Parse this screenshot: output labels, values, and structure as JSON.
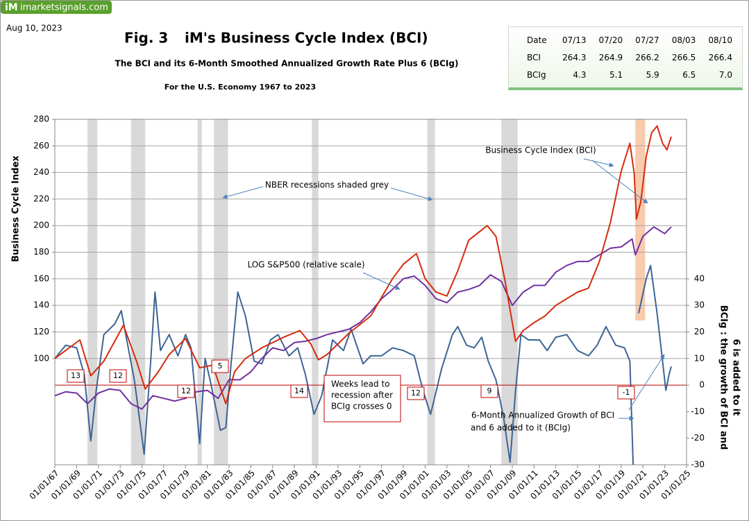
{
  "header": {
    "logo_mark": "iM",
    "logo_text": "imarketsignals.com",
    "date": "Aug 10, 2023"
  },
  "table": {
    "rows": [
      [
        "Date",
        "07/13",
        "07/20",
        "07/27",
        "08/03",
        "08/10"
      ],
      [
        "BCI",
        "264.3",
        "264.9",
        "266.2",
        "266.5",
        "266.4"
      ],
      [
        "BCIg",
        "4.3",
        "5.1",
        "5.9",
        "6.5",
        "7.0"
      ]
    ]
  },
  "chart_data": {
    "type": "line",
    "fig_label": "Fig. 3",
    "title": "iM's Business Cycle Index (BCI)",
    "subtitle": "The BCI and its 6-Month Smoothed Annualized Growth Rate Plus 6 (BCIg)",
    "note": "For the U.S. Economy 1967  to 2023",
    "ylabel": "Business  Cycle  Index",
    "y2label": [
      "BCIg :  the growth of BCI and",
      "6 is added to it"
    ],
    "xlim": [
      1967,
      2025
    ],
    "xticks": [
      {
        "value": 1967,
        "label": "01/01/67"
      },
      {
        "value": 1969,
        "label": "01/01/69"
      },
      {
        "value": 1971,
        "label": "01/01/71"
      },
      {
        "value": 1973,
        "label": "01/01/73"
      },
      {
        "value": 1975,
        "label": "01/01/75"
      },
      {
        "value": 1977,
        "label": "01/01/77"
      },
      {
        "value": 1979,
        "label": "01/01/79"
      },
      {
        "value": 1981,
        "label": "01/01/81"
      },
      {
        "value": 1983,
        "label": "01/01/83"
      },
      {
        "value": 1985,
        "label": "01/01/85"
      },
      {
        "value": 1987,
        "label": "01/01/87"
      },
      {
        "value": 1989,
        "label": "01/01/89"
      },
      {
        "value": 1991,
        "label": "01/01/91"
      },
      {
        "value": 1993,
        "label": "01/01/93"
      },
      {
        "value": 1995,
        "label": "01/01/95"
      },
      {
        "value": 1997,
        "label": "01/01/97"
      },
      {
        "value": 1999,
        "label": "01/01/99"
      },
      {
        "value": 2001,
        "label": "01/01/01"
      },
      {
        "value": 2003,
        "label": "01/01/03"
      },
      {
        "value": 2005,
        "label": "01/01/05"
      },
      {
        "value": 2007,
        "label": "01/01/07"
      },
      {
        "value": 2009,
        "label": "01/01/09"
      },
      {
        "value": 2011,
        "label": "01/01/11"
      },
      {
        "value": 2013,
        "label": "01/01/13"
      },
      {
        "value": 2015,
        "label": "01/01/15"
      },
      {
        "value": 2017,
        "label": "01/01/17"
      },
      {
        "value": 2019,
        "label": "01/01/19"
      },
      {
        "value": 2021,
        "label": "01/01/21"
      },
      {
        "value": 2023,
        "label": "01/01/23"
      },
      {
        "value": 2025,
        "label": "01/01/25"
      }
    ],
    "ylim": [
      20,
      280
    ],
    "yticks": [
      100,
      120,
      140,
      160,
      180,
      200,
      220,
      240,
      260,
      280
    ],
    "y2lim": [
      -30,
      100
    ],
    "y2ticks": [
      -30,
      -20,
      -10,
      0,
      10,
      20,
      30,
      40
    ],
    "grid": true,
    "zero_line_color": "#c00000",
    "recessions": [
      [
        1970.0,
        1970.9
      ],
      [
        1974.0,
        1975.3
      ],
      [
        1980.1,
        1980.5
      ],
      [
        1981.6,
        1982.9
      ],
      [
        1990.6,
        1991.2
      ],
      [
        2001.2,
        2001.9
      ],
      [
        2008.0,
        2009.5
      ]
    ],
    "recession_color": "#d9d9d9",
    "highlight": [
      2020.3,
      2021.2
    ],
    "highlight_color": "#f8cbad",
    "series": [
      {
        "name": "Business Cycle Index (BCI)",
        "color": "#d62a0c",
        "axis": "y",
        "x": [
          1967,
          1969.3,
          1970.3,
          1971.5,
          1973.3,
          1974.5,
          1975.3,
          1976.5,
          1977.5,
          1979,
          1980.3,
          1981.5,
          1982.7,
          1983.5,
          1984.5,
          1986,
          1988,
          1989.5,
          1990.5,
          1991.2,
          1992,
          1994,
          1996,
          1998,
          1999,
          2000.2,
          2001,
          2002,
          2003,
          2004,
          2005,
          2006.7,
          2007.5,
          2008.3,
          2009.3,
          2010,
          2011,
          2012,
          2013,
          2014,
          2015,
          2016,
          2017,
          2018,
          2019,
          2019.8,
          2020.2,
          2020.4,
          2020.8,
          2021.3,
          2021.8,
          2022.3,
          2022.8,
          2023.2,
          2023.6
        ],
        "values": [
          100,
          114,
          87,
          98,
          125,
          98,
          77,
          90,
          103,
          115,
          93,
          95,
          66,
          90,
          100,
          108,
          116,
          121,
          111,
          99,
          103,
          119,
          132,
          160,
          171,
          179,
          160,
          150,
          147,
          166,
          189,
          200,
          192,
          160,
          113,
          121,
          127,
          132,
          140,
          145,
          150,
          153,
          173,
          202,
          241,
          262,
          239,
          205,
          218,
          252,
          270,
          275,
          262,
          257,
          267
        ]
      },
      {
        "name": "LOG S&P500 (relative scale)",
        "color": "#7030a0",
        "axis": "y",
        "x": [
          1967,
          1968,
          1969,
          1970,
          1971,
          1972,
          1973,
          1974,
          1975,
          1976,
          1977,
          1978,
          1979,
          1980,
          1981,
          1982,
          1983,
          1984,
          1985,
          1986,
          1987,
          1988,
          1989,
          1990,
          1991,
          1992,
          1993,
          1994,
          1995,
          1996,
          1997,
          1998,
          1999,
          2000,
          2001,
          2002,
          2003,
          2004,
          2005,
          2006,
          2007,
          2008,
          2009,
          2010,
          2011,
          2012,
          2013,
          2014,
          2015,
          2016,
          2017,
          2018,
          2019,
          2020,
          2020.3,
          2021,
          2022,
          2023,
          2023.6
        ],
        "values": [
          72,
          75,
          74,
          66,
          74,
          77,
          76,
          66,
          62,
          72,
          70,
          68,
          70,
          75,
          76,
          70,
          84,
          84,
          90,
          100,
          108,
          106,
          112,
          113,
          115,
          118,
          120,
          122,
          127,
          135,
          145,
          152,
          160,
          162,
          155,
          145,
          142,
          150,
          152,
          155,
          163,
          158,
          140,
          150,
          155,
          155,
          165,
          170,
          173,
          173,
          178,
          183,
          184,
          190,
          178,
          192,
          199,
          194,
          199
        ]
      },
      {
        "label_lines": [
          "6-Month Annualized Growth of BCI",
          "and 6 added to it (BCIg)"
        ],
        "color": "#3c6496",
        "axis": "y2",
        "x": [
          1967,
          1968,
          1969,
          1969.7,
          1970.3,
          1970.8,
          1971.5,
          1972.5,
          1973.1,
          1973.6,
          1974.3,
          1975.2,
          1975.8,
          1976.2,
          1976.7,
          1977.5,
          1978.3,
          1979,
          1979.5,
          1980.3,
          1980.8,
          1981.3,
          1982.2,
          1982.7,
          1983.2,
          1983.8,
          1984.5,
          1985.3,
          1986,
          1986.8,
          1987.5,
          1988.5,
          1989.3,
          1990,
          1990.8,
          1991.5,
          1992.5,
          1993.5,
          1994.2,
          1995.3,
          1996,
          1997,
          1998,
          1999,
          2000,
          2000.8,
          2001.5,
          2002.5,
          2003.5,
          2004,
          2004.8,
          2005.5,
          2006.2,
          2006.8,
          2007.5,
          2008.2,
          2008.8,
          2009.3,
          2009.8,
          2010.5,
          2011.5,
          2012.2,
          2013,
          2014,
          2015,
          2016,
          2016.8,
          2017.6,
          2018.5,
          2019.3,
          2019.8,
          2020.1,
          2020.3,
          2020.6,
          2021.3,
          2021.7,
          2022.3,
          2022.8,
          2023.1,
          2023.4,
          2023.6
        ],
        "values": [
          10,
          15,
          14,
          4,
          -21,
          -2,
          19,
          23,
          28,
          17,
          2,
          -26,
          9,
          35,
          13,
          19,
          11,
          19,
          14,
          -22,
          10,
          1,
          -17,
          -16,
          9,
          35,
          26,
          9,
          8,
          17,
          19,
          11,
          14,
          4,
          -11,
          -4,
          17,
          13,
          21,
          8,
          11,
          11,
          14,
          13,
          11,
          -2,
          -11,
          6,
          19,
          22,
          15,
          14,
          18,
          9,
          2,
          -12,
          -29,
          -2,
          19,
          17,
          17,
          13,
          18,
          19,
          13,
          11,
          15,
          22,
          15,
          14,
          9,
          -30,
          null,
          27,
          40,
          45,
          27,
          9,
          -2,
          4,
          7
        ]
      }
    ],
    "annotations": {
      "recessions": "NBER recessions shaded grey",
      "lead_box": [
        "Weeks  lead  to",
        "recession after",
        "BCIg crosses 0"
      ]
    },
    "lead_weeks": [
      13,
      12,
      12,
      5,
      14,
      12,
      9,
      -1
    ]
  }
}
